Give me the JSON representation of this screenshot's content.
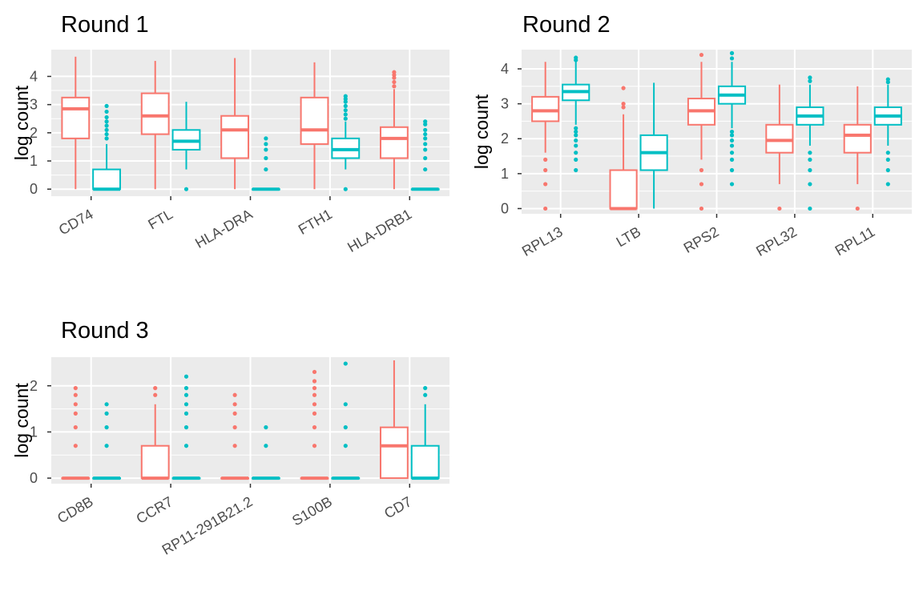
{
  "chart_data": [
    {
      "type": "box",
      "title": "Round 1",
      "ylabel": "log count",
      "ylim": [
        -0.25,
        4.95
      ],
      "yticks": [
        0,
        1,
        2,
        3,
        4
      ],
      "categories": [
        "CD74",
        "FTL",
        "HLA-DRA",
        "FTH1",
        "HLA-DRB1"
      ],
      "series_colors": [
        "#F8766D",
        "#00BFC4"
      ],
      "boxes": [
        [
          {
            "q1": 1.8,
            "median": 2.85,
            "q3": 3.25,
            "whisker_low": 0,
            "whisker_high": 4.7,
            "outliers": []
          },
          {
            "q1": 0,
            "median": 0,
            "q3": 0.7,
            "whisker_low": 0,
            "whisker_high": 1.6,
            "outliers": [
              1.8,
              1.95,
              2.1,
              2.25,
              2.4,
              2.55,
              2.75,
              2.95
            ]
          }
        ],
        [
          {
            "q1": 1.95,
            "median": 2.6,
            "q3": 3.4,
            "whisker_low": 0,
            "whisker_high": 4.55,
            "outliers": []
          },
          {
            "q1": 1.4,
            "median": 1.7,
            "q3": 2.1,
            "whisker_low": 0.7,
            "whisker_high": 3.1,
            "outliers": [
              0
            ]
          }
        ],
        [
          {
            "q1": 1.1,
            "median": 2.1,
            "q3": 2.6,
            "whisker_low": 0,
            "whisker_high": 4.65,
            "outliers": []
          },
          {
            "q1": 0,
            "median": 0,
            "q3": 0,
            "whisker_low": 0,
            "whisker_high": 0,
            "outliers": [
              0.7,
              1.1,
              1.4,
              1.6,
              1.8
            ]
          }
        ],
        [
          {
            "q1": 1.6,
            "median": 2.1,
            "q3": 3.25,
            "whisker_low": 0,
            "whisker_high": 4.5,
            "outliers": []
          },
          {
            "q1": 1.1,
            "median": 1.4,
            "q3": 1.8,
            "whisker_low": 0.7,
            "whisker_high": 2.4,
            "outliers": [
              0,
              2.5,
              2.65,
              2.8,
              2.95,
              3.1,
              3.2,
              3.3
            ]
          }
        ],
        [
          {
            "q1": 1.1,
            "median": 1.8,
            "q3": 2.2,
            "whisker_low": 0,
            "whisker_high": 3.55,
            "outliers": [
              3.65,
              3.8,
              3.95,
              4.05,
              4.15
            ]
          },
          {
            "q1": 0,
            "median": 0,
            "q3": 0,
            "whisker_low": 0,
            "whisker_high": 0,
            "outliers": [
              0.7,
              1.1,
              1.4,
              1.6,
              1.8,
              1.95,
              2.1,
              2.3,
              2.4
            ]
          }
        ]
      ]
    },
    {
      "type": "box",
      "title": "Round 2",
      "ylabel": "log count",
      "ylim": [
        -0.15,
        4.55
      ],
      "yticks": [
        0,
        1,
        2,
        3,
        4
      ],
      "categories": [
        "RPL13",
        "LTB",
        "RPS2",
        "RPL32",
        "RPL11"
      ],
      "series_colors": [
        "#F8766D",
        "#00BFC4"
      ],
      "boxes": [
        [
          {
            "q1": 2.5,
            "median": 2.8,
            "q3": 3.2,
            "whisker_low": 1.6,
            "whisker_high": 4.2,
            "outliers": [
              0,
              0.7,
              1.1,
              1.4
            ]
          },
          {
            "q1": 3.1,
            "median": 3.35,
            "q3": 3.55,
            "whisker_low": 2.4,
            "whisker_high": 4.2,
            "outliers": [
              1.1,
              1.4,
              1.6,
              1.8,
              1.95,
              2.1,
              2.2,
              2.3,
              4.25,
              4.32
            ]
          }
        ],
        [
          {
            "q1": 0,
            "median": 0,
            "q3": 1.1,
            "whisker_low": 0,
            "whisker_high": 2.7,
            "outliers": [
              2.9,
              3.0,
              3.45
            ]
          },
          {
            "q1": 1.1,
            "median": 1.6,
            "q3": 2.1,
            "whisker_low": 0,
            "whisker_high": 3.6,
            "outliers": []
          }
        ],
        [
          {
            "q1": 2.4,
            "median": 2.8,
            "q3": 3.15,
            "whisker_low": 1.4,
            "whisker_high": 4.2,
            "outliers": [
              0,
              0.7,
              1.1,
              4.4
            ]
          },
          {
            "q1": 3.0,
            "median": 3.25,
            "q3": 3.5,
            "whisker_low": 2.3,
            "whisker_high": 4.2,
            "outliers": [
              0.7,
              1.1,
              1.4,
              1.6,
              1.8,
              1.95,
              2.1,
              2.2,
              4.3,
              4.45
            ]
          }
        ],
        [
          {
            "q1": 1.6,
            "median": 1.95,
            "q3": 2.4,
            "whisker_low": 0.7,
            "whisker_high": 3.55,
            "outliers": [
              0
            ]
          },
          {
            "q1": 2.4,
            "median": 2.65,
            "q3": 2.9,
            "whisker_low": 1.8,
            "whisker_high": 3.55,
            "outliers": [
              0,
              0.7,
              1.1,
              1.4,
              1.6,
              3.65,
              3.75
            ]
          }
        ],
        [
          {
            "q1": 1.6,
            "median": 2.1,
            "q3": 2.4,
            "whisker_low": 0.7,
            "whisker_high": 3.5,
            "outliers": [
              0
            ]
          },
          {
            "q1": 2.4,
            "median": 2.65,
            "q3": 2.9,
            "whisker_low": 1.8,
            "whisker_high": 3.55,
            "outliers": [
              0.7,
              1.1,
              1.4,
              1.6,
              3.62,
              3.7
            ]
          }
        ]
      ]
    },
    {
      "type": "box",
      "title": "Round 3",
      "ylabel": "log count",
      "ylim": [
        -0.12,
        2.62
      ],
      "yticks": [
        0,
        1,
        2
      ],
      "categories": [
        "CD8B",
        "CCR7",
        "RP11-291B21.2",
        "S100B",
        "CD7"
      ],
      "series_colors": [
        "#F8766D",
        "#00BFC4"
      ],
      "boxes": [
        [
          {
            "q1": 0,
            "median": 0,
            "q3": 0,
            "whisker_low": 0,
            "whisker_high": 0,
            "outliers": [
              0.7,
              1.1,
              1.4,
              1.6,
              1.8,
              1.95
            ]
          },
          {
            "q1": 0,
            "median": 0,
            "q3": 0,
            "whisker_low": 0,
            "whisker_high": 0,
            "outliers": [
              0.7,
              1.1,
              1.4,
              1.6
            ]
          }
        ],
        [
          {
            "q1": 0,
            "median": 0,
            "q3": 0.7,
            "whisker_low": 0,
            "whisker_high": 1.6,
            "outliers": [
              1.8,
              1.95
            ]
          },
          {
            "q1": 0,
            "median": 0,
            "q3": 0,
            "whisker_low": 0,
            "whisker_high": 0,
            "outliers": [
              0.7,
              1.1,
              1.4,
              1.6,
              1.8,
              1.95,
              2.2
            ]
          }
        ],
        [
          {
            "q1": 0,
            "median": 0,
            "q3": 0,
            "whisker_low": 0,
            "whisker_high": 0,
            "outliers": [
              0.7,
              1.1,
              1.4,
              1.6,
              1.8
            ]
          },
          {
            "q1": 0,
            "median": 0,
            "q3": 0,
            "whisker_low": 0,
            "whisker_high": 0,
            "outliers": [
              0.7,
              1.1
            ]
          }
        ],
        [
          {
            "q1": 0,
            "median": 0,
            "q3": 0,
            "whisker_low": 0,
            "whisker_high": 0,
            "outliers": [
              0.7,
              1.1,
              1.4,
              1.6,
              1.8,
              1.95,
              2.1,
              2.3
            ]
          },
          {
            "q1": 0,
            "median": 0,
            "q3": 0,
            "whisker_low": 0,
            "whisker_high": 0,
            "outliers": [
              0.7,
              1.1,
              1.6,
              2.48
            ]
          }
        ],
        [
          {
            "q1": 0,
            "median": 0.7,
            "q3": 1.1,
            "whisker_low": 0,
            "whisker_high": 2.55,
            "outliers": []
          },
          {
            "q1": 0,
            "median": 0,
            "q3": 0.7,
            "whisker_low": 0,
            "whisker_high": 1.6,
            "outliers": [
              1.8,
              1.95
            ]
          }
        ]
      ]
    }
  ]
}
